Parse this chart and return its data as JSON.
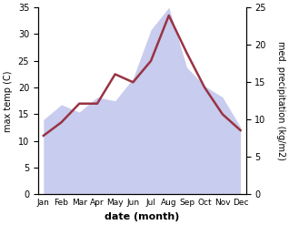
{
  "months": [
    "Jan",
    "Feb",
    "Mar",
    "Apr",
    "May",
    "Jun",
    "Jul",
    "Aug",
    "Sep",
    "Oct",
    "Nov",
    "Dec"
  ],
  "month_indices": [
    0,
    1,
    2,
    3,
    4,
    5,
    6,
    7,
    8,
    9,
    10,
    11
  ],
  "temperature": [
    11,
    13.5,
    17,
    17,
    22.5,
    21,
    25,
    33.5,
    26.5,
    20,
    15,
    12
  ],
  "precipitation": [
    10,
    12,
    11,
    13,
    12.5,
    15.5,
    22,
    25,
    17,
    14.5,
    13,
    9
  ],
  "temp_color": "#993344",
  "precip_fill_color": "#c8ccee",
  "temp_ylim": [
    0,
    35
  ],
  "precip_ylim": [
    0,
    25
  ],
  "temp_yticks": [
    0,
    5,
    10,
    15,
    20,
    25,
    30,
    35
  ],
  "precip_yticks": [
    0,
    5,
    10,
    15,
    20,
    25
  ],
  "xlabel": "date (month)",
  "ylabel_left": "max temp (C)",
  "ylabel_right": "med. precipitation (kg/m2)",
  "line_width": 1.8,
  "background_color": "#ffffff",
  "tick_fontsize": 7,
  "label_fontsize": 7,
  "xlabel_fontsize": 8
}
